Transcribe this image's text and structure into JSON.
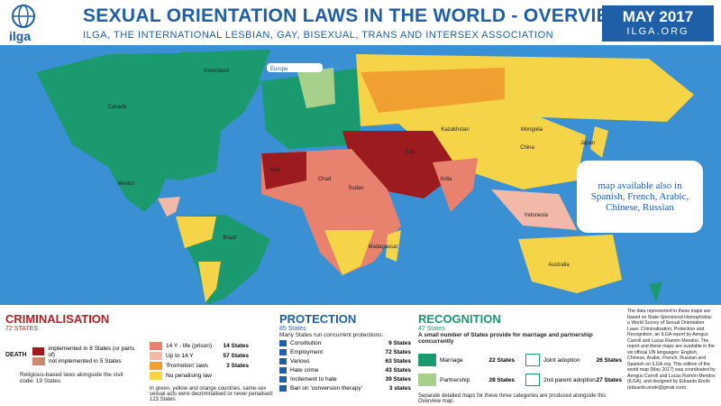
{
  "header": {
    "logo": "ilga",
    "title": "SEXUAL ORIENTATION LAWS IN THE WORLD - OVERVIEW",
    "subtitle": "ILGA, THE INTERNATIONAL LESBIAN, GAY, BISEXUAL, TRANS AND INTERSEX ASSOCIATION",
    "date": "MAY 2017",
    "site": "ILGA.ORG"
  },
  "map": {
    "note": "map available also in Spanish, French, Arabic, Chinese, Russian",
    "europe_inset": "Europe",
    "labels": [
      "Canada",
      "Greenland",
      "Mexico",
      "Brazil",
      "Mali",
      "Chad",
      "Sudan",
      "Iran",
      "India",
      "China",
      "Mongolia",
      "Kazakhstan",
      "Madagascar",
      "Indonesia",
      "Australia",
      "Japan"
    ]
  },
  "criminalisation": {
    "title": "CRIMINALISATION",
    "count": "72 STATES",
    "death": "DEATH",
    "death_rows": [
      "implemented in 8 States (or parts of)",
      "not implemented in 5 States"
    ],
    "religious": "Religious-based laws alongside the civil code: 19 States",
    "rows": [
      [
        "14 Y - life (prison)",
        "14 States"
      ],
      [
        "Up to 14 Y",
        "57 States"
      ],
      [
        "'Promotion' laws",
        "3 States"
      ],
      [
        "No penalising law",
        ""
      ]
    ],
    "footnote": "In green, yellow and orange countries, same-sex sexual acts were decriminalised or never penalised: 123 States"
  },
  "protection": {
    "title": "PROTECTION",
    "count": "85 States",
    "subtitle": "Many States run concurrent protections:",
    "rows": [
      [
        "Constitution",
        "9 States"
      ],
      [
        "Employment",
        "72 States"
      ],
      [
        "Various",
        "63 States"
      ],
      [
        "Hate crime",
        "43 States"
      ],
      [
        "Incitement to hate",
        "39 States"
      ],
      [
        "Ban on 'conversion therapy'",
        "3 states"
      ]
    ]
  },
  "recognition": {
    "title": "RECOGNITION",
    "count": "47 States",
    "subtitle": "A small number of States provide for marriage and partnership concurrently",
    "rows": [
      [
        "Marriage",
        "22 States"
      ],
      [
        "Partnership",
        "28 States"
      ],
      [
        "Joint adoption",
        "26 States"
      ],
      [
        "2nd parent adoption",
        "27 States"
      ]
    ],
    "footer": "Separate detailed maps for these three categories are produced alongside this Overview map."
  },
  "info": "The data represented in these maps are based on State-Sponsored Homophobia: a World Survey of Sexual Orientation Laws: Criminalisation, Protection and Recognition, an ILGA report by Aengus Carroll and Lucas Ramón Mendos. The report and these maps are available in the six official UN languages: English, Chinese, Arabic, French, Russian and Spanish on ILGA.org. This edition of the world map (May 2017) was coordinated by Aengus Carroll and Lucas Ramón Mendos (ILGA), and designed by Eduardo Enoki (eduardo.enoki@gmail.com)."
}
